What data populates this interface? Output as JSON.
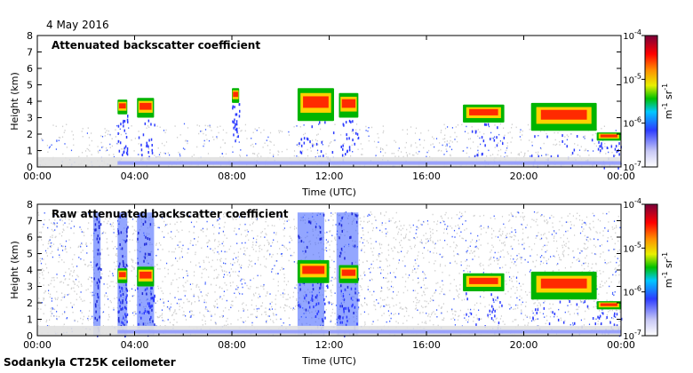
{
  "figure": {
    "date_label": "4 May 2016",
    "footer_label": "Sodankyla CT25K ceilometer",
    "colors": {
      "cloud_layer": "#ff2a00",
      "noise": "#cfcfcf",
      "aerosol": "#3b5cff",
      "axis": "#000000"
    }
  },
  "chart_data": [
    {
      "type": "heatmap",
      "title": "Attenuated backscatter coefficient",
      "xlabel": "Time (UTC)",
      "ylabel": "Height (km)",
      "xlim": [
        0,
        24
      ],
      "ylim": [
        0,
        8
      ],
      "x_ticks": [
        0,
        4,
        8,
        12,
        16,
        20,
        24
      ],
      "x_tick_labels": [
        "00:00",
        "04:00",
        "08:00",
        "12:00",
        "16:00",
        "20:00",
        "00:00"
      ],
      "y_ticks": [
        0,
        1,
        2,
        3,
        4,
        5,
        6,
        7,
        8
      ],
      "y_tick_labels": [
        "0",
        "1",
        "2",
        "3",
        "4",
        "5",
        "6",
        "7",
        "8"
      ],
      "colorbar": {
        "scale": "log",
        "range": [
          1e-07,
          0.0001
        ],
        "ticks": [
          "10-7",
          "10-6",
          "10-5",
          "10-4"
        ],
        "label": "m-1 sr-1"
      },
      "features": [
        {
          "kind": "cloud",
          "t_start": 3.3,
          "t_end": 3.7,
          "h_min": 3.2,
          "h_max": 4.1
        },
        {
          "kind": "cloud",
          "t_start": 4.1,
          "t_end": 4.8,
          "h_min": 3.0,
          "h_max": 4.2
        },
        {
          "kind": "cloud",
          "t_start": 8.0,
          "t_end": 8.3,
          "h_min": 3.9,
          "h_max": 4.8
        },
        {
          "kind": "cloud",
          "t_start": 10.7,
          "t_end": 12.2,
          "h_min": 2.8,
          "h_max": 4.8
        },
        {
          "kind": "cloud",
          "t_start": 12.4,
          "t_end": 13.2,
          "h_min": 3.0,
          "h_max": 4.5
        },
        {
          "kind": "cloud",
          "t_start": 17.5,
          "t_end": 19.2,
          "h_min": 2.7,
          "h_max": 3.8
        },
        {
          "kind": "cloud",
          "t_start": 20.3,
          "t_end": 23.0,
          "h_min": 2.2,
          "h_max": 3.9
        },
        {
          "kind": "cloud",
          "t_start": 23.0,
          "t_end": 24.0,
          "h_min": 1.6,
          "h_max": 2.1
        },
        {
          "kind": "boundary_layer",
          "t_start": 0,
          "t_end": 24,
          "h_min": 0,
          "h_max": 0.6
        }
      ]
    },
    {
      "type": "heatmap",
      "title": "Raw attenuated backscatter coefficient",
      "xlabel": "Time (UTC)",
      "ylabel": "Height (km)",
      "xlim": [
        0,
        24
      ],
      "ylim": [
        0,
        8
      ],
      "x_ticks": [
        0,
        4,
        8,
        12,
        16,
        20,
        24
      ],
      "x_tick_labels": [
        "00:00",
        "04:00",
        "08:00",
        "12:00",
        "16:00",
        "20:00",
        "00:00"
      ],
      "y_ticks": [
        0,
        1,
        2,
        3,
        4,
        5,
        6,
        7,
        8
      ],
      "y_tick_labels": [
        "0",
        "1",
        "2",
        "3",
        "4",
        "5",
        "6",
        "7",
        "8"
      ],
      "colorbar": {
        "scale": "log",
        "range": [
          1e-07,
          0.0001
        ],
        "ticks": [
          "10-7",
          "10-6",
          "10-5",
          "10-4"
        ],
        "label": "m-1 sr-1"
      },
      "features": [
        {
          "kind": "precip_column",
          "t_start": 2.3,
          "t_end": 2.6,
          "h_min": 0,
          "h_max": 7.5
        },
        {
          "kind": "precip_column",
          "t_start": 3.3,
          "t_end": 3.7,
          "h_min": 0,
          "h_max": 7.5
        },
        {
          "kind": "precip_column",
          "t_start": 4.1,
          "t_end": 4.8,
          "h_min": 0,
          "h_max": 7.5
        },
        {
          "kind": "precip_column",
          "t_start": 10.7,
          "t_end": 11.8,
          "h_min": 0,
          "h_max": 7.5
        },
        {
          "kind": "precip_column",
          "t_start": 12.3,
          "t_end": 13.2,
          "h_min": 0,
          "h_max": 7.5
        },
        {
          "kind": "cloud",
          "t_start": 3.3,
          "t_end": 3.7,
          "h_min": 3.2,
          "h_max": 4.1
        },
        {
          "kind": "cloud",
          "t_start": 4.1,
          "t_end": 4.8,
          "h_min": 3.0,
          "h_max": 4.2
        },
        {
          "kind": "cloud",
          "t_start": 10.7,
          "t_end": 12.0,
          "h_min": 3.2,
          "h_max": 4.6
        },
        {
          "kind": "cloud",
          "t_start": 12.4,
          "t_end": 13.2,
          "h_min": 3.2,
          "h_max": 4.3
        },
        {
          "kind": "cloud",
          "t_start": 17.5,
          "t_end": 19.2,
          "h_min": 2.7,
          "h_max": 3.8
        },
        {
          "kind": "cloud",
          "t_start": 20.3,
          "t_end": 23.0,
          "h_min": 2.2,
          "h_max": 3.9
        },
        {
          "kind": "cloud",
          "t_start": 23.0,
          "t_end": 24.0,
          "h_min": 1.6,
          "h_max": 2.1
        },
        {
          "kind": "boundary_layer",
          "t_start": 0,
          "t_end": 24,
          "h_min": 0,
          "h_max": 0.6
        }
      ]
    }
  ]
}
